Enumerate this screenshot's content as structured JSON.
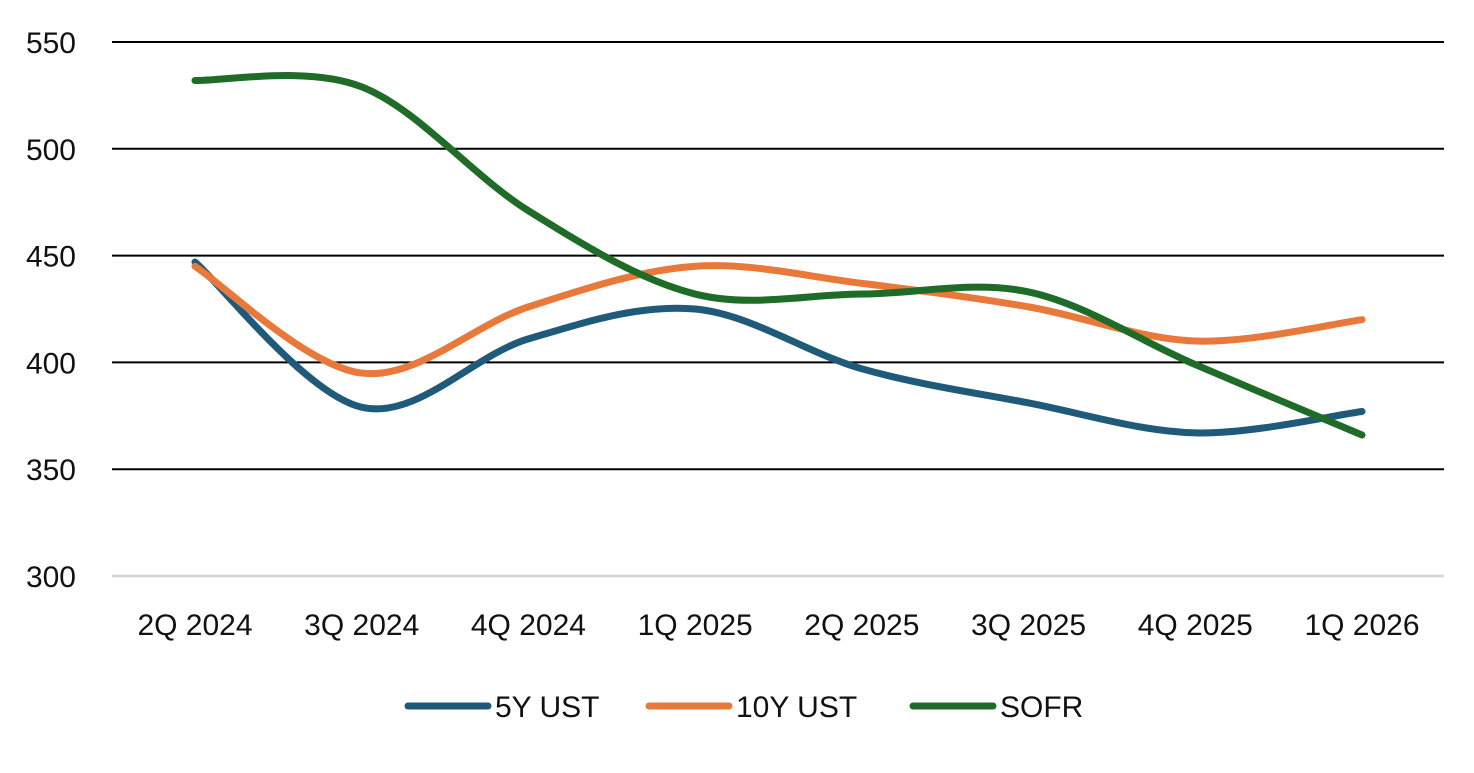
{
  "chart_data": {
    "type": "line",
    "title": "",
    "xlabel": "",
    "ylabel": "",
    "categories": [
      "2Q 2024",
      "3Q 2024",
      "4Q 2024",
      "1Q 2025",
      "2Q 2025",
      "3Q 2025",
      "4Q 2025",
      "1Q 2026"
    ],
    "ylim": [
      300,
      550
    ],
    "yticks": [
      300,
      350,
      400,
      450,
      500,
      550
    ],
    "grid": true,
    "legend_position": "bottom",
    "smooth": true,
    "series": [
      {
        "name": "5Y UST",
        "color": "#1f5a7a",
        "values": [
          447,
          379,
          411,
          425,
          397,
          381,
          367,
          377
        ]
      },
      {
        "name": "10Y UST",
        "color": "#e8793a",
        "values": [
          445,
          395,
          426,
          445,
          437,
          426,
          410,
          420
        ]
      },
      {
        "name": "SOFR",
        "color": "#1f6b28",
        "values": [
          532,
          529,
          471,
          432,
          432,
          433,
          399,
          366
        ]
      }
    ]
  }
}
